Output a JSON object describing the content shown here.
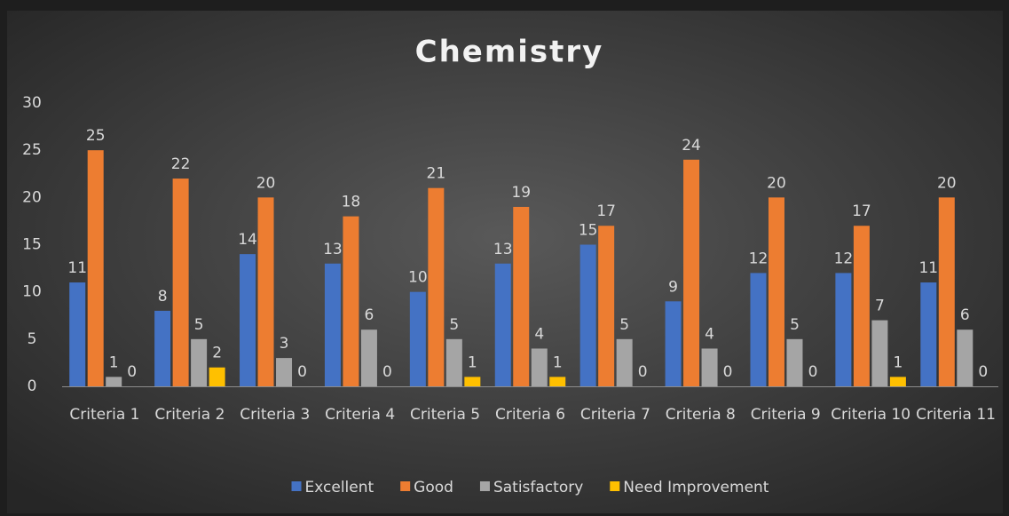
{
  "chart_data": {
    "type": "bar",
    "title": "Chemistry",
    "categories": [
      "Criteria 1",
      "Criteria 2",
      "Criteria 3",
      "Criteria 4",
      "Criteria 5",
      "Criteria 6",
      "Criteria 7",
      "Criteria 8",
      "Criteria 9",
      "Criteria 10",
      "Criteria 11"
    ],
    "series": [
      {
        "name": "Excellent",
        "color": "#4472c4",
        "values": [
          11,
          8,
          14,
          13,
          10,
          13,
          15,
          9,
          12,
          12,
          11
        ]
      },
      {
        "name": "Good",
        "color": "#ed7d31",
        "values": [
          25,
          22,
          20,
          18,
          21,
          19,
          17,
          24,
          20,
          17,
          20
        ]
      },
      {
        "name": "Satisfactory",
        "color": "#a5a5a5",
        "values": [
          1,
          5,
          3,
          6,
          5,
          4,
          5,
          4,
          5,
          7,
          6
        ]
      },
      {
        "name": "Need Improvement",
        "color": "#ffc000",
        "values": [
          0,
          2,
          0,
          0,
          1,
          1,
          0,
          0,
          0,
          1,
          0
        ]
      }
    ],
    "ylim": [
      0,
      30
    ],
    "yticks": [
      0,
      5,
      10,
      15,
      20,
      25,
      30
    ],
    "grid": false,
    "legend": "bottom"
  }
}
